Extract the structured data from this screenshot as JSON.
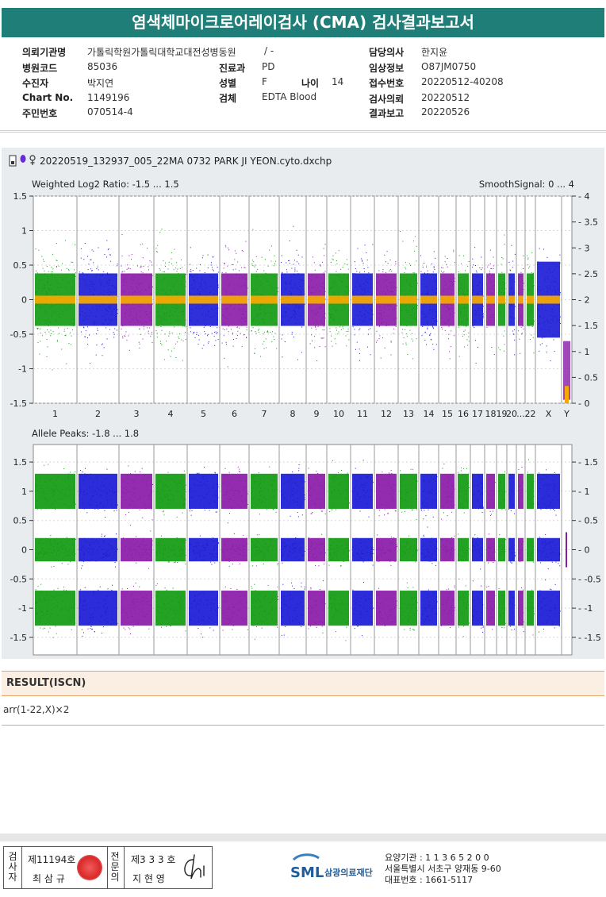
{
  "title": "염색체마이크로어레이검사 (CMA) 검사결과보고서",
  "info": {
    "col1": [
      {
        "label": "의뢰기관명",
        "value": "가톨릭학원가톨릭대학교대전성병동원"
      },
      {
        "label": "병원코드",
        "value": "85036"
      },
      {
        "label": "수진자",
        "value": "박지연"
      },
      {
        "label": "Chart No.",
        "value": "1149196"
      },
      {
        "label": "주민번호",
        "value": "070514-4"
      }
    ],
    "col2": [
      {
        "label": "",
        "value": "/ -"
      },
      {
        "label": "진료과",
        "value": "PD"
      },
      {
        "label": "성별",
        "value": "F"
      },
      {
        "label": "검체",
        "value": "EDTA Blood"
      }
    ],
    "age": {
      "label": "나이",
      "value": "14"
    },
    "col3": [
      {
        "label": "담당의사",
        "value": "한지윤"
      },
      {
        "label": "임상정보",
        "value": "O87JM0750"
      },
      {
        "label": "접수번호",
        "value": "20220512-40208"
      },
      {
        "label": "검사의뢰",
        "value": "20220512"
      },
      {
        "label": "결과보고",
        "value": "20220526"
      }
    ]
  },
  "chart_header": {
    "filename": "20220519_132937_005_22MA 0732 PARK JI YEON.cyto.dxchp",
    "icons": [
      "file-icon",
      "balloon-icon",
      "female-icon"
    ]
  },
  "chart_data": [
    {
      "type": "scatter",
      "title": "Weighted Log2 Ratio: -1.5 ... 1.5",
      "right_title": "SmoothSignal: 0 ... 4",
      "ylim": [
        -1.5,
        1.5
      ],
      "y_ticks": [
        "1.5",
        "1",
        "0.5",
        "0",
        "-0.5",
        "-1",
        "-1.5"
      ],
      "y2lim": [
        0,
        4
      ],
      "y2_ticks": [
        "4",
        "3.5",
        "3",
        "2.5",
        "2",
        "1.5",
        "1",
        "0.5",
        "0"
      ],
      "categories": [
        "1",
        "2",
        "3",
        "4",
        "5",
        "6",
        "7",
        "8",
        "9",
        "10",
        "11",
        "12",
        "13",
        "14",
        "15",
        "16",
        "17",
        "18",
        "19",
        "20",
        "21",
        "22",
        "X",
        "Y"
      ],
      "x_labels": [
        "1",
        "2",
        "3",
        "4",
        "5",
        "6",
        "7",
        "8",
        "9",
        "10",
        "11",
        "12",
        "13",
        "14",
        "15",
        "16",
        "17",
        "18",
        "19",
        "20",
        "...",
        "22",
        "X",
        "Y"
      ],
      "series": [
        {
          "values": [
            0,
            0,
            0,
            0,
            0,
            0,
            0,
            0,
            0,
            0,
            0,
            0,
            0,
            0,
            0,
            0,
            0,
            0,
            0,
            0,
            0,
            0,
            0,
            -1.4
          ]
        },
        {
          "name": "SmoothSignal",
          "values": [
            2,
            2,
            2,
            2,
            2,
            2,
            2,
            2,
            2,
            2,
            2,
            2,
            2,
            2,
            2,
            2,
            2,
            2,
            2,
            2,
            2,
            2,
            2,
            0
          ]
        }
      ],
      "grid": true
    },
    {
      "type": "scatter",
      "title": "Allele Peaks: -1.8 ... 1.8",
      "ylim": [
        -1.8,
        1.8
      ],
      "y_ticks": [
        "1.5",
        "1",
        "0.5",
        "0",
        "-0.5",
        "-1",
        "-1.5"
      ],
      "y2_ticks": [
        "1.5",
        "1",
        "0.5",
        "0",
        "-0.5",
        "-1",
        "-1.5"
      ],
      "series": [
        {
          "values": [
            1.0,
            1.0,
            1.0
          ]
        },
        {
          "values": [
            0,
            0,
            0
          ]
        },
        {
          "values": [
            -1.0,
            -1.0,
            -1.0
          ]
        }
      ],
      "grid": true
    }
  ],
  "colors": {
    "green": "#109a10",
    "blue": "#1a1ad6",
    "purple": "#8a1aa8",
    "orange": "#f5a800",
    "teal": "#1f7f78"
  },
  "result": {
    "heading": "RESULT(ISCN)",
    "text": "arr(1-22,X)×2"
  },
  "signature": {
    "left_vertical": "검사자",
    "left_top": "제11194호",
    "left_bottom": "최 삼 규",
    "mid_vertical": "전문의",
    "right_top": "제3 3 3 호",
    "right_bottom": "지 현 영",
    "signature_mark": "Ch"
  },
  "org": {
    "logo": "SML",
    "name": "삼광의료재단",
    "line1": "요양기관 : 1 1 3 6 5 2 0 0",
    "line2": "서울특별시 서초구 양재동 9-60",
    "line3": "대표번호 : 1661-5117"
  }
}
